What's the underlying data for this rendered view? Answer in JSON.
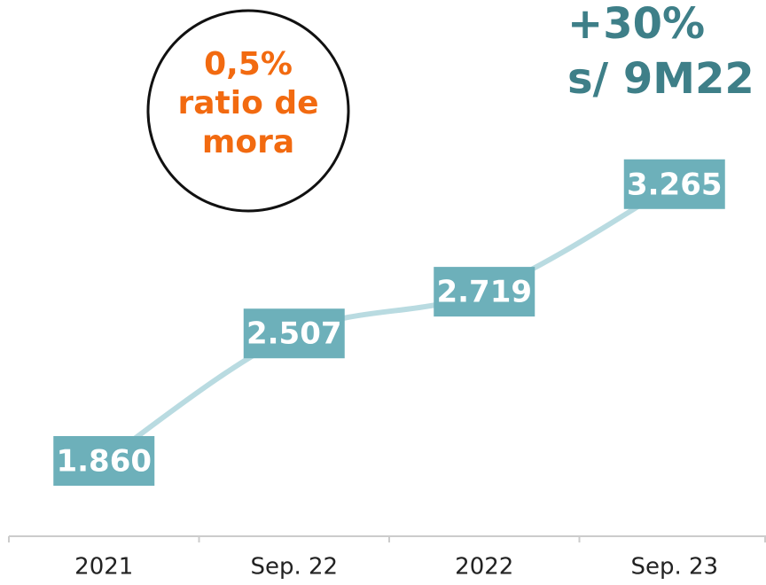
{
  "chart_data": {
    "type": "line",
    "categories": [
      "2021",
      "Sep. 22",
      "2022",
      "Sep. 23"
    ],
    "series": [
      {
        "color": "#b9dbe1",
        "label_color": "#6db0ba",
        "values": [
          1860,
          2507,
          2719,
          3265
        ],
        "value_labels": [
          "1.860",
          "2.507",
          "2.719",
          "3.265"
        ]
      }
    ],
    "ylim": [
      1500,
      4200
    ],
    "annotations": [
      {
        "lines": [
          "0,5%",
          "ratio de",
          "mora"
        ],
        "color": "#f26a10"
      },
      {
        "lines": [
          "+30%",
          "s/ 9M22"
        ],
        "color": "#3e7f88"
      }
    ]
  }
}
